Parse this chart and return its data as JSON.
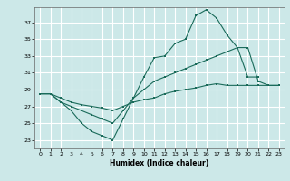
{
  "xlabel": "Humidex (Indice chaleur)",
  "xlim": [
    -0.5,
    23.5
  ],
  "ylim": [
    22.0,
    38.8
  ],
  "yticks": [
    23,
    25,
    27,
    29,
    31,
    33,
    35,
    37
  ],
  "xticks": [
    0,
    1,
    2,
    3,
    4,
    5,
    6,
    7,
    8,
    9,
    10,
    11,
    12,
    13,
    14,
    15,
    16,
    17,
    18,
    19,
    20,
    21,
    22,
    23
  ],
  "bg_color": "#cce8e8",
  "grid_color": "#ffffff",
  "line_color": "#1a6b5a",
  "line1_x": [
    0,
    1,
    2,
    3,
    4,
    5,
    6,
    7,
    8,
    9,
    10,
    11,
    12,
    13,
    14,
    15,
    16,
    17,
    18,
    19,
    20,
    21
  ],
  "line1_y": [
    28.5,
    28.5,
    27.5,
    26.5,
    25.0,
    24.0,
    23.5,
    23.0,
    25.5,
    28.0,
    30.5,
    32.8,
    33.0,
    34.5,
    35.0,
    37.8,
    38.5,
    37.5,
    35.5,
    34.0,
    30.5,
    30.5
  ],
  "line2_x": [
    0,
    1,
    2,
    3,
    4,
    5,
    6,
    7,
    8,
    9,
    10,
    11,
    12,
    13,
    14,
    15,
    16,
    17,
    18,
    19,
    20,
    21,
    22,
    23
  ],
  "line2_y": [
    28.5,
    28.5,
    27.5,
    27.0,
    26.5,
    26.0,
    25.5,
    25.0,
    26.5,
    28.0,
    29.0,
    30.0,
    30.5,
    31.0,
    31.5,
    32.0,
    32.5,
    33.0,
    33.5,
    34.0,
    34.0,
    30.0,
    29.5,
    29.5
  ],
  "line3_x": [
    0,
    1,
    2,
    3,
    4,
    5,
    6,
    7,
    8,
    9,
    10,
    11,
    12,
    13,
    14,
    15,
    16,
    17,
    18,
    19,
    20,
    21,
    22,
    23
  ],
  "line3_y": [
    28.5,
    28.5,
    28.0,
    27.5,
    27.2,
    27.0,
    26.8,
    26.5,
    27.0,
    27.5,
    27.8,
    28.0,
    28.5,
    28.8,
    29.0,
    29.2,
    29.5,
    29.7,
    29.5,
    29.5,
    29.5,
    29.5,
    29.5,
    29.5
  ]
}
